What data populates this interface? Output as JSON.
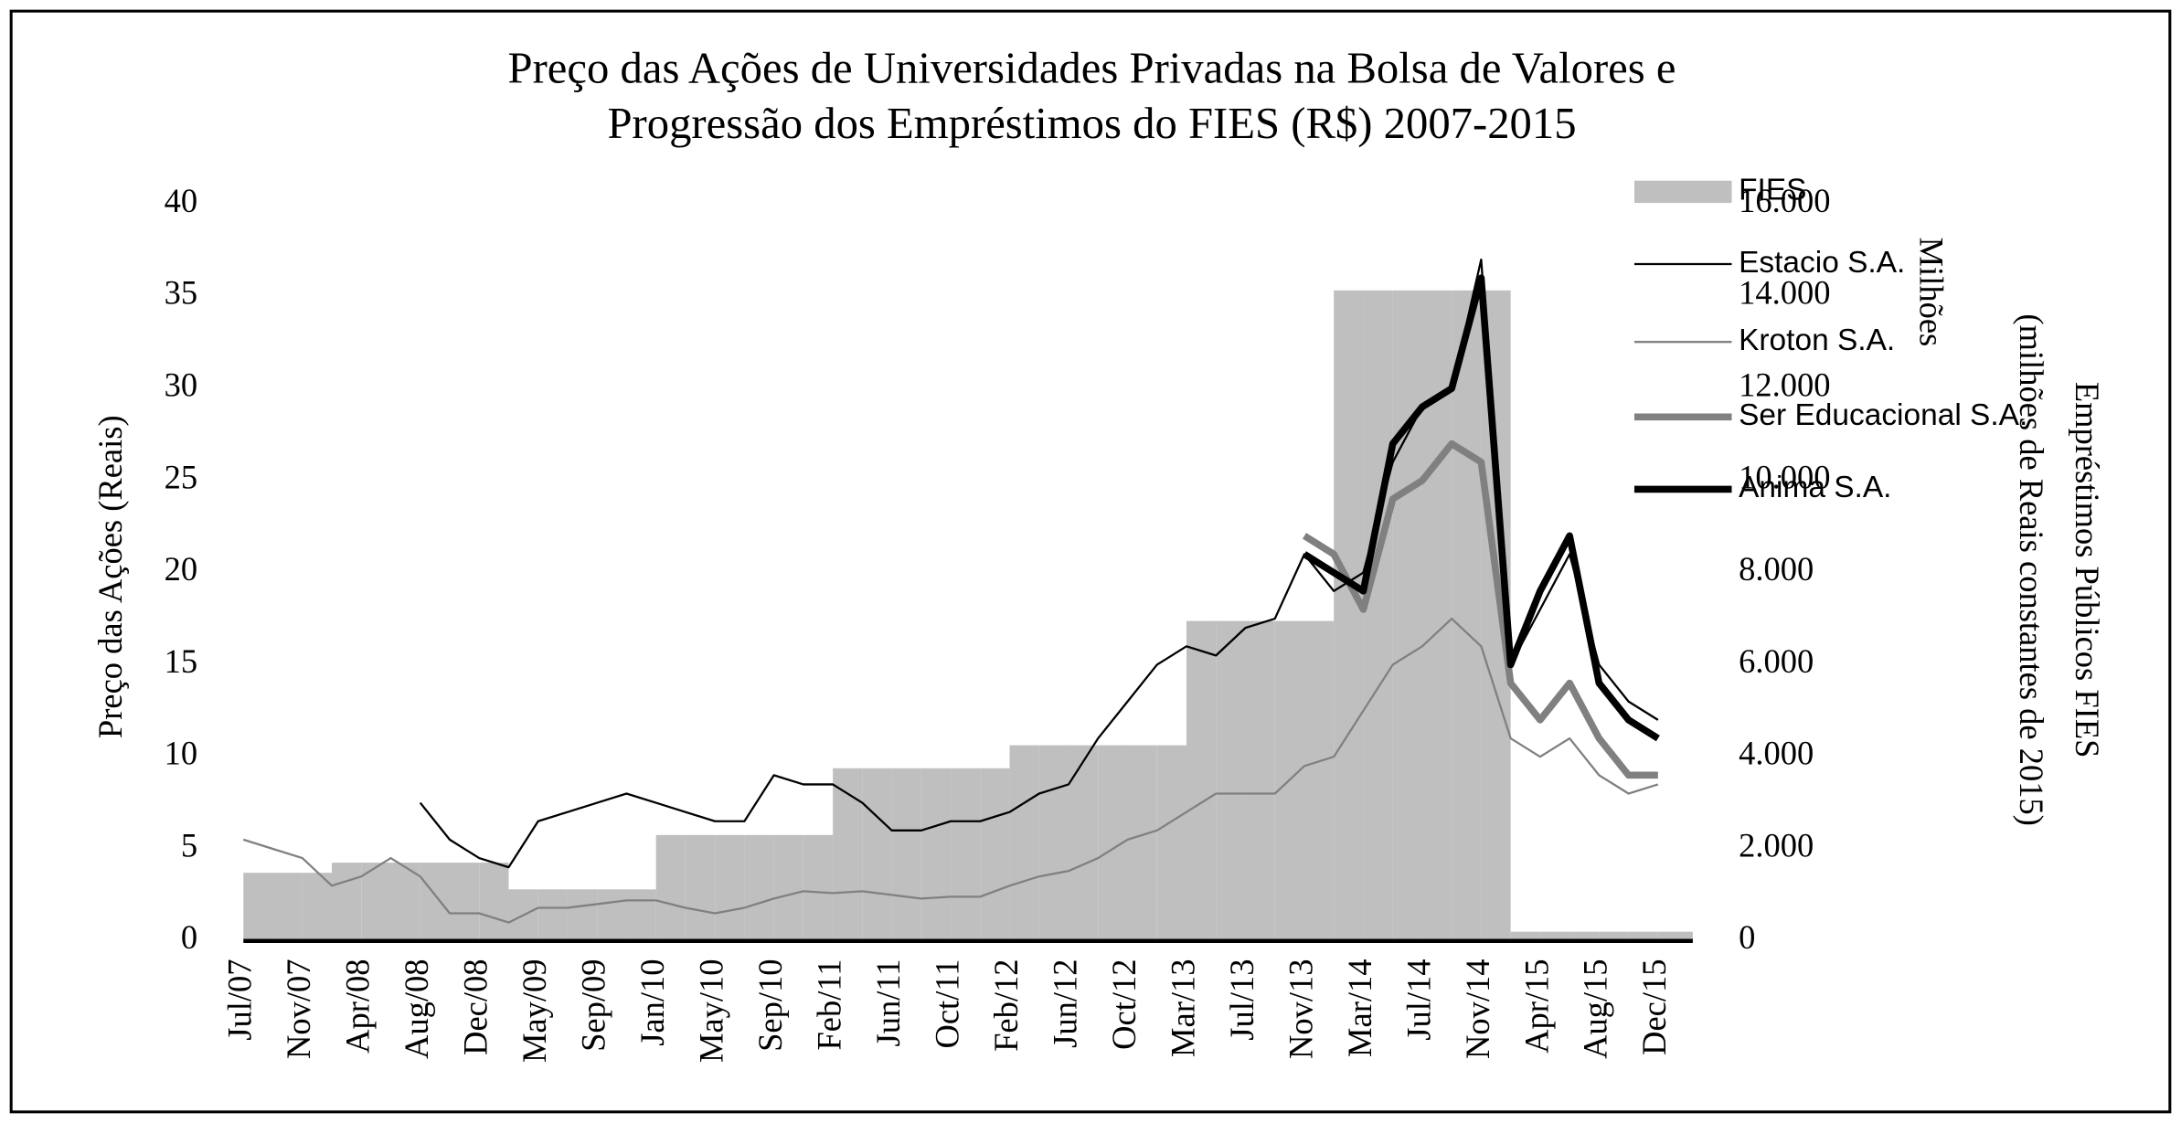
{
  "chart_data": {
    "type": "line",
    "title": [
      "Preço das Ações de Universidades Privadas na Bolsa de Valores e",
      "Progressão dos Empréstimos do FIES (R$)  2007-2015"
    ],
    "y_label": "Preço das Ações (Reais)",
    "y2_label": [
      "Milhões",
      "Empréstimos Públicos FIES",
      "(milhões de Reais constantes de 2015)"
    ],
    "categories": [
      "Jul/07",
      null,
      "Nov/07",
      null,
      "Apr/08",
      null,
      "Aug/08",
      null,
      "Dec/08",
      null,
      "May/09",
      null,
      "Sep/09",
      null,
      "Jan/10",
      null,
      "May/10",
      null,
      "Sep/10",
      null,
      "Feb/11",
      null,
      "Jun/11",
      null,
      "Oct/11",
      null,
      "Feb/12",
      null,
      "Jun/12",
      null,
      "Oct/12",
      null,
      "Mar/13",
      null,
      "Jul/13",
      null,
      "Nov/13",
      null,
      "Mar/14",
      null,
      "Jul/14",
      null,
      "Nov/14",
      null,
      "Apr/15",
      null,
      "Aug/15",
      null,
      "Dec/15"
    ],
    "ylim": [
      0,
      40
    ],
    "yticks": [
      0,
      5,
      10,
      15,
      20,
      25,
      30,
      35,
      40
    ],
    "y2lim": [
      0,
      16000
    ],
    "y2ticks": [
      0,
      {
        "value": 2000,
        "label": "2.000"
      },
      {
        "value": 4000,
        "label": "4.000"
      },
      {
        "value": 6000,
        "label": "6.000"
      },
      {
        "value": 8000,
        "label": "8.000"
      },
      {
        "value": 10000,
        "label": "10.000"
      },
      {
        "value": 12000,
        "label": "12.000"
      },
      {
        "value": 14000,
        "label": "14.000"
      },
      {
        "value": 16000,
        "label": "16.000"
      }
    ],
    "series": [
      {
        "name": "FIES",
        "kind": "bar",
        "axis": "y2",
        "color": "#bfbfbf",
        "values": [
          1480,
          1480,
          1480,
          1700,
          1700,
          1700,
          1700,
          1700,
          1700,
          1120,
          1120,
          1120,
          1120,
          1120,
          2300,
          2300,
          2300,
          2300,
          2300,
          2300,
          3750,
          3750,
          3750,
          3750,
          3750,
          3750,
          4250,
          4250,
          4250,
          4250,
          4250,
          4250,
          6950,
          6950,
          6950,
          6950,
          6950,
          14130,
          14130,
          14130,
          14130,
          14130,
          14130,
          200,
          200,
          200,
          200,
          200,
          200
        ]
      },
      {
        "name": "Estacio S.A.",
        "kind": "line",
        "color": "#000000",
        "width": 1.5,
        "values": [
          null,
          null,
          null,
          null,
          null,
          null,
          7.5,
          5.5,
          4.5,
          4.0,
          6.5,
          7.0,
          7.5,
          8.0,
          7.5,
          7.0,
          6.5,
          6.5,
          9.0,
          8.5,
          8.5,
          7.5,
          6.0,
          6.0,
          6.5,
          6.5,
          7.0,
          8.0,
          8.5,
          11,
          13,
          15,
          16,
          15.5,
          17,
          17.5,
          21,
          19,
          20,
          26,
          29,
          30,
          37,
          15,
          18,
          21,
          15,
          13,
          12
        ]
      },
      {
        "name": "Kroton S.A.",
        "kind": "line",
        "color": "#808080",
        "width": 1.5,
        "values": [
          5.5,
          5.0,
          4.5,
          3.0,
          3.5,
          4.5,
          3.5,
          1.5,
          1.5,
          1.0,
          1.8,
          1.8,
          2.0,
          2.2,
          2.2,
          1.8,
          1.5,
          1.8,
          2.3,
          2.7,
          2.6,
          2.7,
          2.5,
          2.3,
          2.4,
          2.4,
          3.0,
          3.5,
          3.8,
          4.5,
          5.5,
          6.0,
          7.0,
          8.0,
          8.0,
          8.0,
          9.5,
          10.0,
          12.5,
          15.0,
          16.0,
          17.5,
          16.0,
          11.0,
          10.0,
          11.0,
          9.0,
          8.0,
          8.5
        ]
      },
      {
        "name": "Ser Educacional S.A.",
        "kind": "line",
        "color": "#808080",
        "width": 5,
        "values": [
          null,
          null,
          null,
          null,
          null,
          null,
          null,
          null,
          null,
          null,
          null,
          null,
          null,
          null,
          null,
          null,
          null,
          null,
          null,
          null,
          null,
          null,
          null,
          null,
          null,
          null,
          null,
          null,
          null,
          null,
          null,
          null,
          null,
          null,
          null,
          null,
          22,
          21,
          18,
          24,
          25,
          27,
          26,
          14,
          12,
          14,
          11,
          9,
          9
        ]
      },
      {
        "name": "Anima S.A.",
        "kind": "line",
        "color": "#000000",
        "width": 5,
        "values": [
          null,
          null,
          null,
          null,
          null,
          null,
          null,
          null,
          null,
          null,
          null,
          null,
          null,
          null,
          null,
          null,
          null,
          null,
          null,
          null,
          null,
          null,
          null,
          null,
          null,
          null,
          null,
          null,
          null,
          null,
          null,
          null,
          null,
          null,
          null,
          null,
          21,
          20,
          19,
          27,
          29,
          30,
          36,
          15,
          19,
          22,
          14,
          12,
          11
        ]
      }
    ]
  }
}
